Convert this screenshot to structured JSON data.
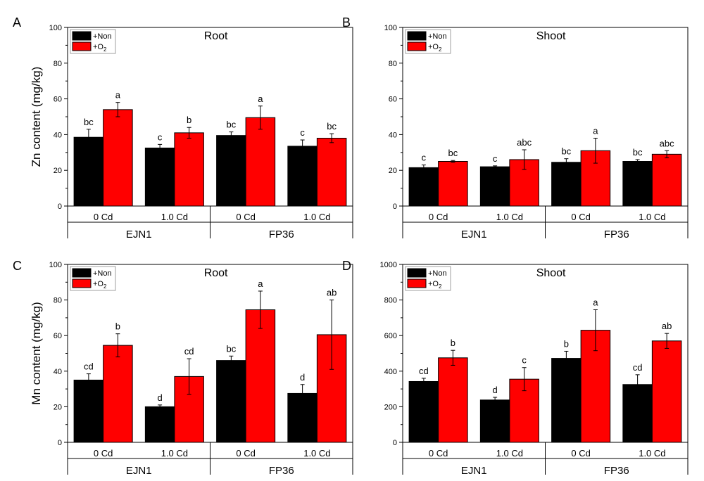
{
  "chart_data": [
    {
      "type": "bar",
      "panel_label": "A",
      "title": "Root",
      "ylabel": "Zn content (mg/kg)",
      "ylim": [
        0,
        100
      ],
      "yticks": [
        "0",
        "20",
        "40",
        "60",
        "80",
        "100"
      ],
      "categories": [
        "0 Cd",
        "1.0 Cd",
        "0 Cd",
        "1.0 Cd"
      ],
      "groups": [
        "EJN1",
        "FP36"
      ],
      "series": [
        {
          "name": "+Non",
          "color": "#000000",
          "values": [
            38.5,
            32.5,
            39.5,
            33.5
          ],
          "errors": [
            4.5,
            2,
            2,
            3.5
          ],
          "letters": [
            "bc",
            "c",
            "bc",
            "c"
          ]
        },
        {
          "name": "+O2",
          "color": "#ff0000",
          "values": [
            54,
            41,
            49.5,
            38
          ],
          "errors": [
            4,
            3,
            6.5,
            2.5
          ],
          "letters": [
            "a",
            "b",
            "a",
            "bc"
          ]
        }
      ]
    },
    {
      "type": "bar",
      "panel_label": "B",
      "title": "Shoot",
      "ylabel": "",
      "ylim": [
        0,
        100
      ],
      "yticks": [
        "0",
        "20",
        "40",
        "60",
        "80",
        "100"
      ],
      "categories": [
        "0 Cd",
        "1.0 Cd",
        "0 Cd",
        "1.0 Cd"
      ],
      "groups": [
        "EJN1",
        "FP36"
      ],
      "series": [
        {
          "name": "+Non",
          "color": "#000000",
          "values": [
            21.5,
            22,
            24.5,
            25
          ],
          "errors": [
            1.5,
            0.5,
            2,
            1
          ],
          "letters": [
            "c",
            "c",
            "bc",
            "bc"
          ]
        },
        {
          "name": "+O2",
          "color": "#ff0000",
          "values": [
            25,
            26,
            31,
            29
          ],
          "errors": [
            0.5,
            5.5,
            7,
            2
          ],
          "letters": [
            "bc",
            "abc",
            "a",
            "abc"
          ]
        }
      ]
    },
    {
      "type": "bar",
      "panel_label": "C",
      "title": "Root",
      "ylabel": "Mn content (mg/kg)",
      "ylim": [
        0,
        100
      ],
      "yticks": [
        "0",
        "20",
        "40",
        "60",
        "80",
        "100"
      ],
      "categories": [
        "0 Cd",
        "1.0 Cd",
        "0 Cd",
        "1.0 Cd"
      ],
      "groups": [
        "EJN1",
        "FP36"
      ],
      "series": [
        {
          "name": "+Non",
          "color": "#000000",
          "values": [
            35,
            20,
            46,
            27.5
          ],
          "errors": [
            3.5,
            1,
            2.5,
            5
          ],
          "letters": [
            "cd",
            "d",
            "bc",
            "d"
          ]
        },
        {
          "name": "+O2",
          "color": "#ff0000",
          "values": [
            54.5,
            37,
            74.5,
            60.5
          ],
          "errors": [
            6.5,
            10,
            10.5,
            19.5
          ],
          "letters": [
            "b",
            "cd",
            "a",
            "ab"
          ]
        }
      ]
    },
    {
      "type": "bar",
      "panel_label": "D",
      "title": "Shoot",
      "ylabel": "",
      "ylim": [
        0,
        1000
      ],
      "yticks": [
        "0",
        "200",
        "400",
        "600",
        "800",
        "1000"
      ],
      "categories": [
        "0 Cd",
        "1.0 Cd",
        "0 Cd",
        "1.0 Cd"
      ],
      "groups": [
        "EJN1",
        "FP36"
      ],
      "series": [
        {
          "name": "+Non",
          "color": "#000000",
          "values": [
            342,
            238,
            472,
            325
          ],
          "errors": [
            18,
            15,
            40,
            55
          ],
          "letters": [
            "cd",
            "d",
            "b",
            "cd"
          ]
        },
        {
          "name": "+O2",
          "color": "#ff0000",
          "values": [
            475,
            355,
            630,
            570
          ],
          "errors": [
            42,
            65,
            115,
            42
          ],
          "letters": [
            "b",
            "c",
            "a",
            "ab"
          ]
        }
      ]
    }
  ],
  "legend": {
    "non_label": "+Non",
    "o2_label_main": "+O",
    "o2_label_sub": "2"
  }
}
